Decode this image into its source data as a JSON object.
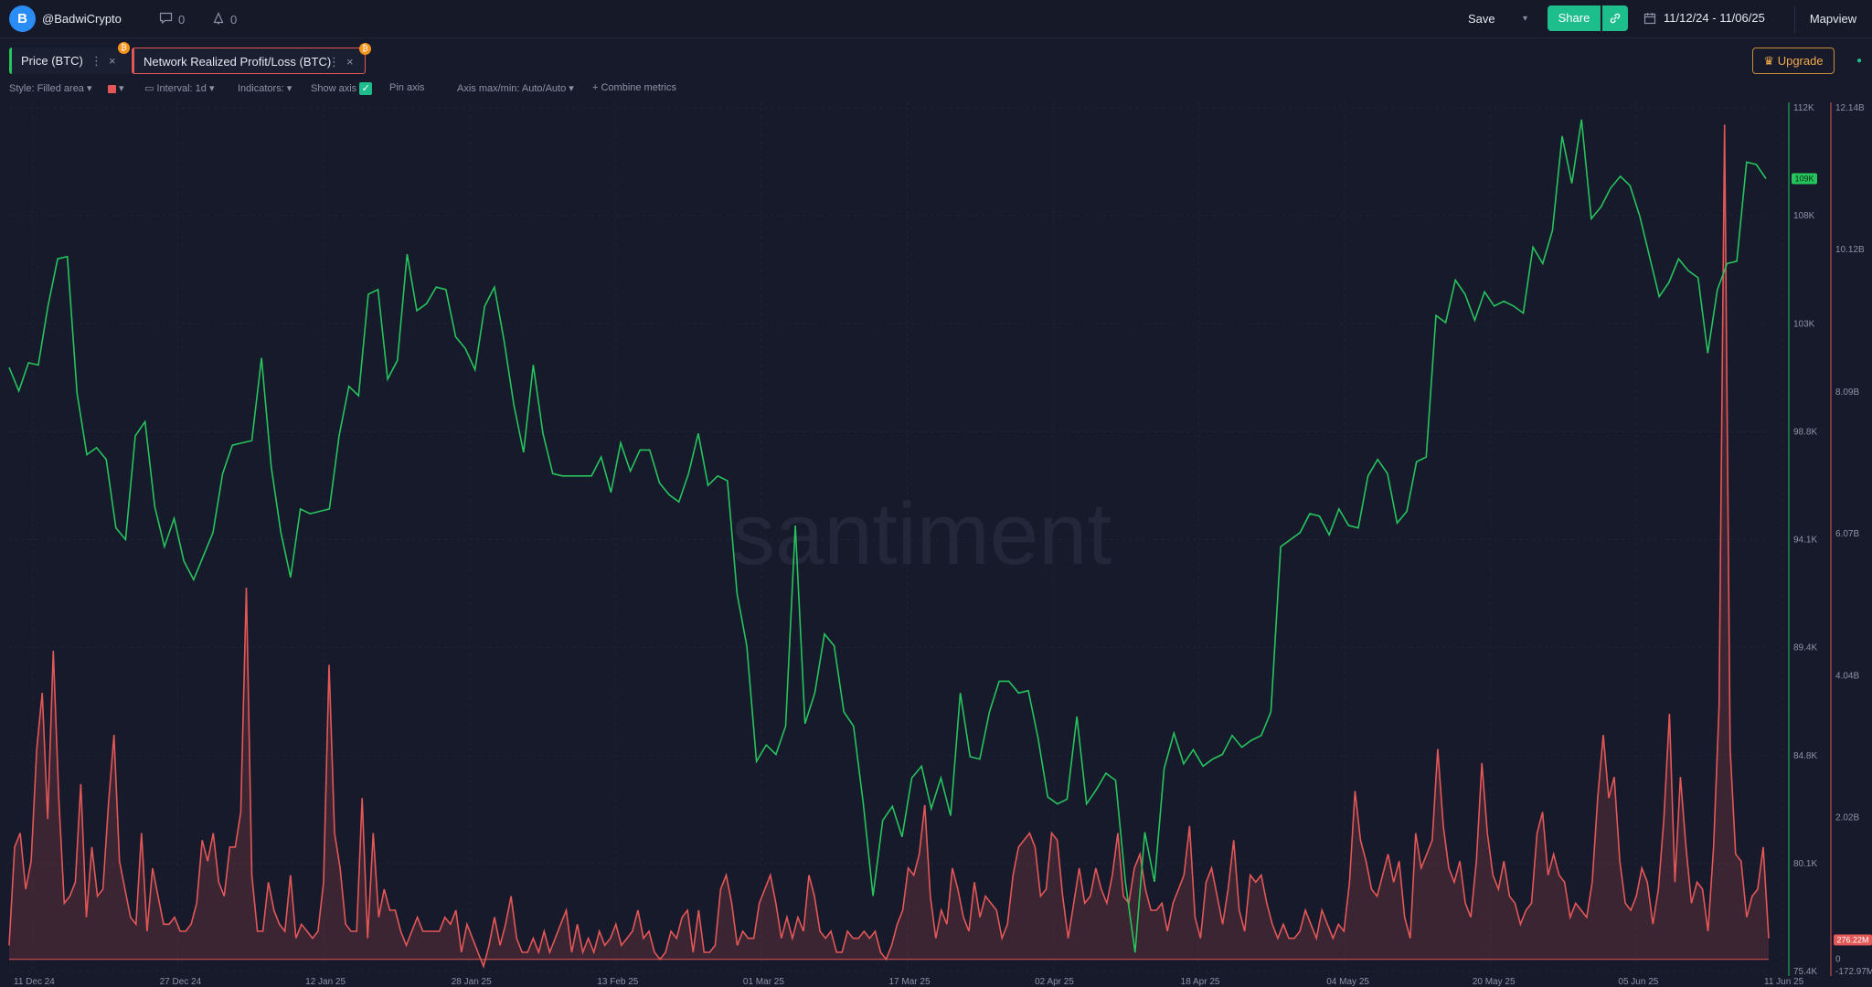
{
  "header": {
    "logo_letter": "B",
    "username": "@BadwiCrypto",
    "comments_count": "0",
    "alerts_count": "0",
    "save_label": "Save",
    "share_label": "Share",
    "date_range": "11/12/24 - 11/06/25",
    "mapview_label": "Mapview"
  },
  "metrics": [
    {
      "label": "Price (BTC)",
      "color": "#26c45d",
      "badge": "₿"
    },
    {
      "label": "Network Realized Profit/Loss (BTC)",
      "color": "#e45757",
      "badge": "₿"
    }
  ],
  "upgrade_label": "Upgrade",
  "toolbar": {
    "style": "Style: Filled area",
    "interval": "Interval: 1d",
    "indicators": "Indicators:",
    "show_axis": "Show axis",
    "pin_axis": "Pin axis",
    "axis_maxmin": "Axis max/min: Auto/Auto",
    "combine": "Combine metrics"
  },
  "chart_data": {
    "type": "line",
    "watermark": "santiment",
    "x_ticks": [
      "11 Dec 24",
      "27 Dec 24",
      "12 Jan 25",
      "28 Jan 25",
      "13 Feb 25",
      "01 Mar 25",
      "17 Mar 25",
      "02 Apr 25",
      "18 Apr 25",
      "04 May 25",
      "20 May 25",
      "05 Jun 25",
      "11 Jun 25"
    ],
    "price_axis": {
      "ticks": [
        "112K",
        "108K",
        "103K",
        "98.8K",
        "94.1K",
        "89.4K",
        "84.8K",
        "80.1K",
        "75.4K"
      ],
      "ylim": [
        75.4,
        112
      ],
      "unit": "K",
      "current_label": "109K"
    },
    "nrpl_axis": {
      "ticks": [
        "12.14B",
        "10.12B",
        "8.09B",
        "6.07B",
        "4.04B",
        "2.02B",
        "0",
        "-172.97M"
      ],
      "ylim": [
        -0.173,
        12.14
      ],
      "unit": "B",
      "current_label": "276.22M"
    },
    "series": [
      {
        "name": "Price (BTC)",
        "color": "#26c45d",
        "values": [
          101.0,
          100.0,
          101.2,
          101.1,
          103.6,
          105.6,
          105.7,
          99.9,
          97.3,
          97.6,
          97.1,
          94.2,
          93.7,
          98.1,
          98.7,
          95.1,
          93.4,
          94.6,
          92.8,
          92.0,
          93.0,
          94.0,
          96.5,
          97.7,
          97.8,
          97.9,
          101.4,
          96.8,
          94.0,
          92.1,
          95.0,
          94.8,
          94.9,
          95.0,
          98.1,
          100.2,
          99.8,
          104.1,
          104.3,
          100.5,
          101.3,
          105.8,
          103.4,
          103.7,
          104.4,
          104.3,
          102.3,
          101.8,
          100.9,
          103.6,
          104.4,
          102.1,
          99.4,
          97.4,
          101.1,
          98.2,
          96.5,
          96.4,
          96.4,
          96.4,
          96.4,
          97.2,
          95.7,
          97.8,
          96.6,
          97.5,
          97.5,
          96.1,
          95.6,
          95.3,
          96.5,
          98.2,
          96.0,
          96.4,
          96.2,
          91.4,
          89.2,
          84.3,
          85.0,
          84.6,
          85.8,
          94.3,
          85.9,
          87.2,
          89.7,
          89.2,
          86.4,
          85.8,
          82.5,
          78.6,
          81.8,
          82.4,
          81.1,
          83.6,
          84.1,
          82.3,
          83.6,
          82.0,
          87.2,
          84.5,
          84.4,
          86.4,
          87.7,
          87.7,
          87.2,
          87.3,
          85.3,
          82.8,
          82.5,
          82.7,
          86.2,
          82.5,
          83.1,
          83.8,
          83.5,
          79.2,
          76.2,
          81.3,
          79.2,
          84.0,
          85.5,
          84.2,
          84.8,
          84.1,
          84.4,
          84.6,
          85.4,
          84.9,
          85.2,
          85.4,
          86.4,
          93.4,
          93.7,
          94.0,
          94.8,
          94.7,
          93.9,
          95.0,
          94.3,
          94.2,
          96.4,
          97.1,
          96.5,
          94.4,
          94.9,
          97.0,
          97.2,
          103.2,
          102.9,
          104.7,
          104.1,
          103.0,
          104.2,
          103.6,
          103.8,
          103.6,
          103.3,
          106.1,
          105.4,
          106.8,
          110.8,
          108.8,
          111.5,
          107.3,
          107.8,
          108.6,
          109.1,
          108.7,
          107.4,
          105.7,
          104.0,
          104.6,
          105.6,
          105.1,
          104.8,
          101.6,
          104.3,
          105.4,
          105.5,
          109.7,
          109.6,
          109.0
        ]
      },
      {
        "name": "Network Realized Profit/Loss (BTC)",
        "color": "#e45757",
        "values": [
          0.2,
          1.6,
          1.8,
          1.0,
          1.4,
          3.0,
          3.8,
          2.0,
          4.4,
          2.3,
          0.8,
          0.9,
          1.1,
          2.5,
          0.6,
          1.6,
          0.9,
          1.0,
          2.2,
          3.2,
          1.4,
          1.0,
          0.6,
          0.5,
          1.8,
          0.4,
          1.3,
          0.9,
          0.5,
          0.5,
          0.6,
          0.4,
          0.4,
          0.5,
          0.8,
          1.7,
          1.4,
          1.8,
          1.1,
          0.9,
          1.6,
          1.6,
          2.1,
          5.3,
          1.2,
          0.4,
          0.4,
          1.1,
          0.7,
          0.5,
          0.4,
          1.2,
          0.3,
          0.5,
          0.4,
          0.3,
          0.4,
          1.1,
          4.2,
          1.8,
          1.3,
          0.5,
          0.4,
          0.4,
          2.3,
          0.3,
          1.8,
          0.6,
          1.0,
          0.7,
          0.7,
          0.4,
          0.2,
          0.4,
          0.6,
          0.4,
          0.4,
          0.4,
          0.4,
          0.6,
          0.5,
          0.7,
          0.1,
          0.5,
          0.3,
          0.1,
          -0.1,
          0.2,
          0.6,
          0.2,
          0.5,
          0.9,
          0.3,
          0.1,
          0.1,
          0.3,
          0.1,
          0.4,
          0.1,
          0.3,
          0.5,
          0.7,
          0.1,
          0.5,
          0.1,
          0.3,
          0.1,
          0.4,
          0.2,
          0.3,
          0.5,
          0.2,
          0.3,
          0.4,
          0.7,
          0.3,
          0.4,
          0.1,
          0.0,
          0.1,
          0.4,
          0.3,
          0.6,
          0.7,
          0.1,
          0.7,
          0.1,
          0.1,
          0.2,
          1.0,
          1.2,
          0.8,
          0.2,
          0.4,
          0.3,
          0.3,
          0.8,
          1.0,
          1.2,
          0.8,
          0.3,
          0.6,
          0.3,
          0.6,
          0.4,
          1.2,
          0.9,
          0.4,
          0.3,
          0.4,
          0.1,
          0.1,
          0.4,
          0.3,
          0.3,
          0.4,
          0.3,
          0.4,
          0.1,
          0.0,
          0.2,
          0.5,
          0.7,
          1.3,
          1.2,
          1.5,
          2.2,
          0.9,
          0.3,
          0.7,
          0.5,
          1.3,
          1.0,
          0.6,
          0.4,
          1.1,
          0.6,
          0.9,
          0.8,
          0.7,
          0.3,
          0.5,
          1.2,
          1.6,
          1.7,
          1.8,
          1.6,
          0.9,
          1.0,
          1.8,
          1.7,
          0.9,
          0.3,
          0.8,
          1.3,
          0.8,
          0.9,
          1.3,
          1.0,
          0.8,
          1.2,
          1.8,
          0.9,
          0.8,
          1.3,
          1.5,
          1.0,
          0.7,
          0.7,
          0.8,
          0.4,
          0.8,
          1.0,
          1.2,
          1.9,
          0.6,
          0.3,
          1.1,
          1.3,
          0.9,
          0.5,
          1.0,
          1.7,
          0.7,
          0.4,
          1.2,
          1.1,
          1.2,
          0.8,
          0.5,
          0.3,
          0.5,
          0.3,
          0.3,
          0.4,
          0.7,
          0.5,
          0.3,
          0.7,
          0.5,
          0.3,
          0.5,
          0.4,
          1.1,
          2.4,
          1.7,
          1.4,
          1.0,
          0.9,
          1.2,
          1.5,
          1.1,
          1.4,
          0.6,
          0.3,
          1.8,
          1.3,
          1.5,
          1.7,
          3.0,
          1.9,
          1.3,
          1.1,
          1.4,
          0.8,
          0.6,
          1.4,
          2.8,
          1.8,
          1.2,
          1.0,
          1.4,
          0.9,
          0.8,
          0.5,
          0.7,
          0.8,
          1.8,
          2.1,
          1.2,
          1.5,
          1.2,
          1.1,
          0.6,
          0.8,
          0.7,
          0.6,
          1.1,
          2.3,
          3.2,
          2.3,
          2.6,
          1.4,
          0.8,
          0.7,
          0.9,
          1.3,
          1.1,
          0.5,
          1.0,
          2.0,
          3.5,
          1.1,
          2.6,
          1.6,
          0.8,
          1.1,
          1.0,
          0.4,
          1.6,
          3.6,
          11.9,
          3.0,
          1.5,
          1.4,
          0.6,
          0.9,
          1.0,
          1.6,
          0.3
        ]
      }
    ]
  }
}
